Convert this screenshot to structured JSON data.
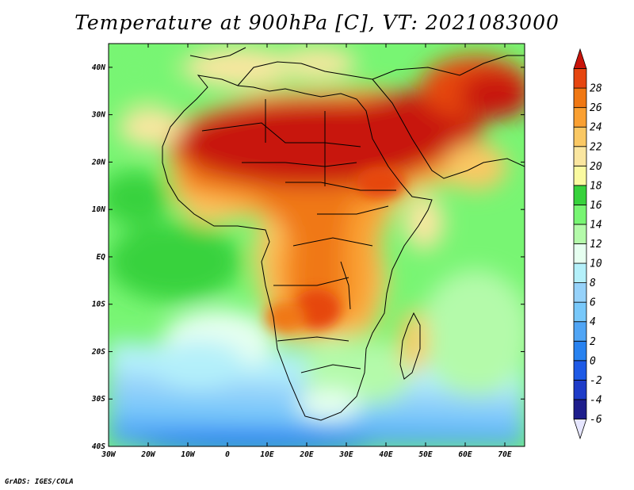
{
  "title": "Temperature at 900hPa [C], VT: 2021083000",
  "credit": "GrADS: IGES/COLA",
  "map": {
    "lon_range": [
      -30,
      75
    ],
    "lat_range": [
      -40,
      45
    ],
    "x_ticks": [
      {
        "lon": -30,
        "label": "30W"
      },
      {
        "lon": -20,
        "label": "20W"
      },
      {
        "lon": -10,
        "label": "10W"
      },
      {
        "lon": 0,
        "label": "0"
      },
      {
        "lon": 10,
        "label": "10E"
      },
      {
        "lon": 20,
        "label": "20E"
      },
      {
        "lon": 30,
        "label": "30E"
      },
      {
        "lon": 40,
        "label": "40E"
      },
      {
        "lon": 50,
        "label": "50E"
      },
      {
        "lon": 60,
        "label": "60E"
      },
      {
        "lon": 70,
        "label": "70E"
      }
    ],
    "y_ticks": [
      {
        "lat": 40,
        "label": "40N"
      },
      {
        "lat": 30,
        "label": "30N"
      },
      {
        "lat": 20,
        "label": "20N"
      },
      {
        "lat": 10,
        "label": "10N"
      },
      {
        "lat": 0,
        "label": "EQ"
      },
      {
        "lat": -10,
        "label": "10S"
      },
      {
        "lat": -20,
        "label": "20S"
      },
      {
        "lat": -30,
        "label": "30S"
      },
      {
        "lat": -40,
        "label": "40S"
      }
    ]
  },
  "colorbar": {
    "levels": [
      -6,
      -4,
      -2,
      0,
      2,
      4,
      6,
      8,
      10,
      12,
      14,
      16,
      18,
      20,
      22,
      24,
      26,
      28
    ],
    "labels": [
      "-6",
      "-4",
      "-2",
      "0",
      "2",
      "4",
      "6",
      "8",
      "10",
      "12",
      "14",
      "16",
      "18",
      "20",
      "22",
      "24",
      "26",
      "28"
    ],
    "colors": [
      "#e6e6ff",
      "#1e1e8c",
      "#1e3cc8",
      "#1e5ae6",
      "#2882f0",
      "#50a5f5",
      "#78c8fa",
      "#96d2fa",
      "#b4f0fa",
      "#e6fff0",
      "#b4faaa",
      "#78f573",
      "#37d23c",
      "#fafaa0",
      "#fae6a0",
      "#fac864",
      "#faa032",
      "#f07814",
      "#e64610",
      "#c8140a"
    ]
  }
}
